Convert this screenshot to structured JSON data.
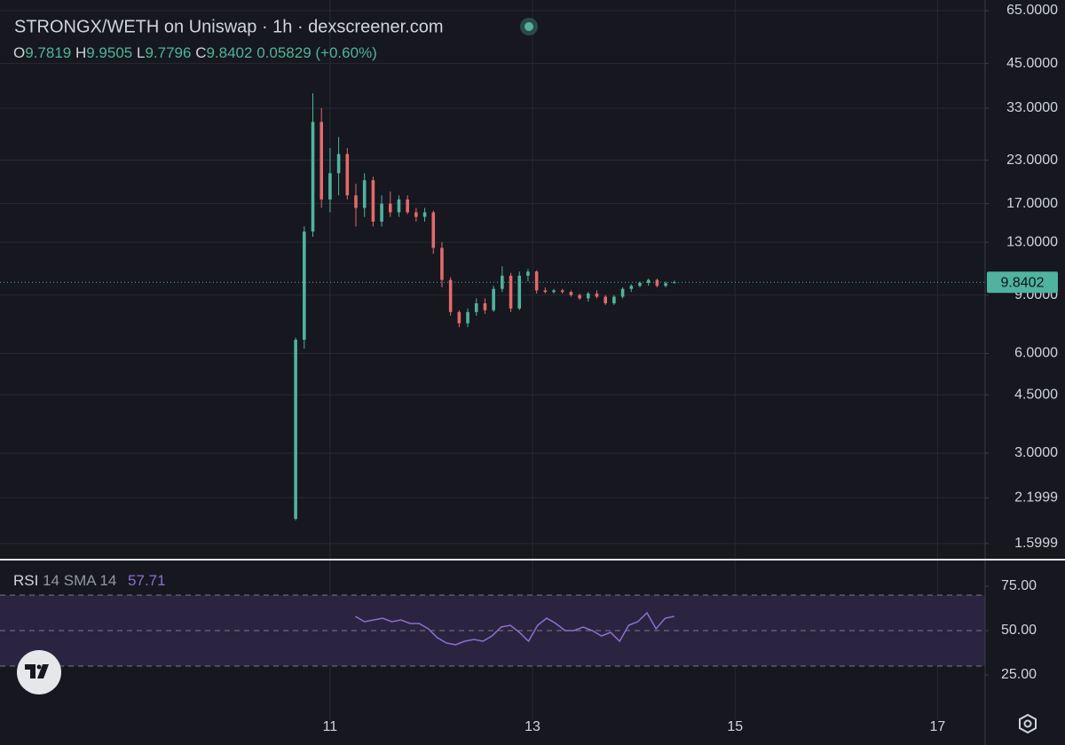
{
  "chart_data": [
    {
      "type": "candlestick",
      "title": "STRONGX/WETH on Uniswap · 1h · dexscreener.com",
      "legend": {
        "open_label": "O",
        "open": 9.7819,
        "high_label": "H",
        "high": 9.9505,
        "low_label": "L",
        "low": 9.7796,
        "close_label": "C",
        "close": 9.8402,
        "change": 0.05829,
        "change_pct": "(+0.60%)"
      },
      "last_price": 9.8402,
      "up_color": "#4fb39f",
      "down_color": "#e3696b",
      "log_scale": true,
      "grid": true,
      "xlim": [
        7.74,
        17.47
      ],
      "xticks": [
        11,
        13,
        15,
        17
      ],
      "ylim": [
        1.44,
        70
      ],
      "yticks": [
        {
          "value": 65,
          "label": "65.0000"
        },
        {
          "value": 45,
          "label": "45.0000"
        },
        {
          "value": 33,
          "label": "33.0000"
        },
        {
          "value": 23,
          "label": "23.0000"
        },
        {
          "value": 17,
          "label": "17.0000"
        },
        {
          "value": 13,
          "label": "13.0000"
        },
        {
          "value": 9,
          "label": "9.0000"
        },
        {
          "value": 6,
          "label": "6.0000"
        },
        {
          "value": 4.5,
          "label": "4.5000"
        },
        {
          "value": 3,
          "label": "3.0000"
        },
        2.1999,
        1.5999
      ],
      "x": [
        10.66,
        10.745,
        10.83,
        10.915,
        11.0,
        11.085,
        11.17,
        11.255,
        11.34,
        11.425,
        11.51,
        11.595,
        11.68,
        11.765,
        11.85,
        11.935,
        12.02,
        12.105,
        12.19,
        12.275,
        12.36,
        12.445,
        12.53,
        12.615,
        12.7,
        12.785,
        12.87,
        12.955,
        13.04,
        13.125,
        13.21,
        13.295,
        13.38,
        13.465,
        13.55,
        13.635,
        13.72,
        13.805,
        13.89,
        13.975,
        14.06,
        14.145,
        14.23,
        14.315,
        14.4
      ],
      "open": [
        1.9,
        6.6,
        14,
        30,
        17.5,
        21,
        24,
        18,
        16.5,
        20,
        15,
        17,
        16,
        17.5,
        16,
        15.5,
        16,
        12.5,
        10,
        8,
        7.4,
        8,
        8.5,
        8.1,
        9.4,
        10.3,
        8.2,
        10.3,
        10.6,
        9.3,
        9.2,
        9.3,
        9.2,
        9.0,
        8.8,
        9.1,
        8.9,
        8.5,
        8.9,
        9.4,
        9.6,
        9.8,
        10.0,
        9.6,
        9.7819
      ],
      "high": [
        6.7,
        14.5,
        36.6,
        33,
        25,
        27,
        25,
        19.5,
        21,
        20.5,
        18,
        18.5,
        18,
        18,
        16.5,
        16.5,
        16.2,
        13,
        10.2,
        8.1,
        8.2,
        8.8,
        8.8,
        9.6,
        11,
        10.5,
        10.6,
        10.8,
        10.7,
        9.5,
        9.4,
        9.4,
        9.3,
        9.1,
        9.2,
        9.3,
        9.0,
        9.0,
        9.5,
        9.7,
        9.9,
        10.1,
        10.1,
        9.9,
        9.9505
      ],
      "low": [
        1.88,
        6.2,
        13.5,
        16.5,
        16,
        18,
        17.5,
        14.5,
        15.5,
        14.5,
        14.5,
        15.5,
        15.5,
        15.8,
        15,
        15,
        12,
        9.5,
        7.8,
        7.2,
        7.2,
        7.8,
        7.9,
        8,
        9.2,
        8,
        8.1,
        9.9,
        9.1,
        9.1,
        9.1,
        9.1,
        8.9,
        8.7,
        8.6,
        8.8,
        8.4,
        8.4,
        8.8,
        9.2,
        9.5,
        9.6,
        9.5,
        9.5,
        9.7796
      ],
      "close": [
        6.6,
        14,
        30,
        17.5,
        21,
        24,
        18,
        16.5,
        20,
        15,
        17,
        16,
        17.5,
        16,
        15.5,
        16,
        12.5,
        10,
        8,
        7.4,
        8,
        8.5,
        8.1,
        9.4,
        10.3,
        8.2,
        10.3,
        10.6,
        9.3,
        9.2,
        9.3,
        9.2,
        9.0,
        8.8,
        9.1,
        8.9,
        8.5,
        8.9,
        9.4,
        9.6,
        9.8,
        10.0,
        9.6,
        9.78,
        9.8402
      ]
    },
    {
      "type": "line",
      "legend": {
        "name": "RSI",
        "length": 14,
        "smoothing": "SMA",
        "smoothing_length": 14,
        "value": 57.71
      },
      "color": "#8d6fd1",
      "band": [
        30,
        70
      ],
      "midline": 50,
      "band_color": "#2a2440",
      "xlim": [
        7.74,
        17.47
      ],
      "ylim": [
        -0.5,
        89.5
      ],
      "yticks": [
        {
          "value": 75,
          "label": "75.00"
        },
        {
          "value": 50,
          "label": "50.00"
        },
        {
          "value": 25,
          "label": "25.00"
        }
      ],
      "x": [
        11.25,
        11.34,
        11.43,
        11.52,
        11.61,
        11.7,
        11.79,
        11.88,
        11.97,
        12.06,
        12.15,
        12.24,
        12.33,
        12.42,
        12.51,
        12.6,
        12.69,
        12.78,
        12.87,
        12.96,
        13.05,
        13.14,
        13.23,
        13.32,
        13.41,
        13.5,
        13.59,
        13.68,
        13.77,
        13.86,
        13.95,
        14.04,
        14.13,
        14.22,
        14.31,
        14.4
      ],
      "values": [
        58,
        55,
        56,
        57,
        55,
        56,
        54,
        54,
        51,
        46,
        43,
        42,
        44,
        45,
        44,
        47,
        52,
        53,
        49,
        44,
        53,
        57,
        54,
        50,
        50,
        52,
        50,
        47,
        49,
        44,
        53,
        55,
        60,
        51,
        57,
        58
      ]
    }
  ]
}
